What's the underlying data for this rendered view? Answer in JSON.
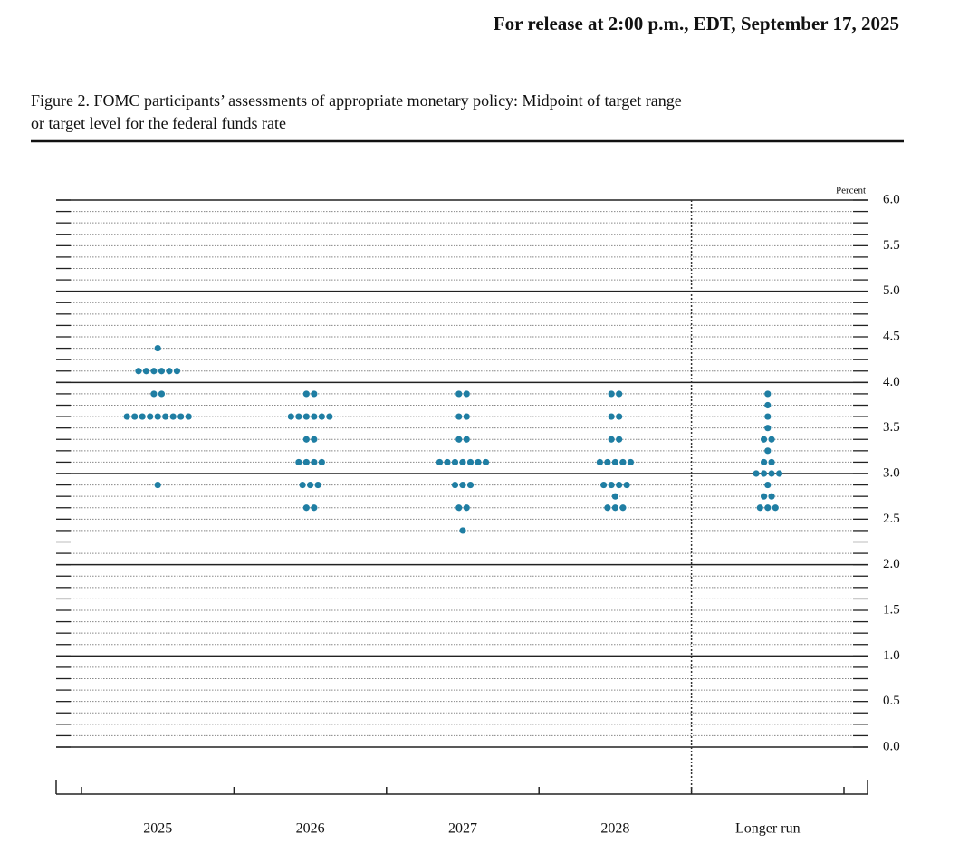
{
  "chart_data": {
    "type": "dot",
    "header": "For release at 2:00 p.m., EDT, September 17, 2025",
    "title": "Figure 2. FOMC participants’ assessments of appropriate monetary policy: Midpoint of target range",
    "title_line2": "or target level for the federal funds rate",
    "y_axis_label": "Percent",
    "categories": [
      "2025",
      "2026",
      "2027",
      "2028",
      "Longer run"
    ],
    "color": "#1f7ea3",
    "values": [
      [
        4.375,
        4.125,
        4.125,
        4.125,
        4.125,
        4.125,
        4.125,
        3.875,
        3.875,
        3.625,
        3.625,
        3.625,
        3.625,
        3.625,
        3.625,
        3.625,
        3.625,
        3.625,
        2.875
      ],
      [
        3.875,
        3.875,
        3.625,
        3.625,
        3.625,
        3.625,
        3.625,
        3.625,
        3.375,
        3.375,
        3.125,
        3.125,
        3.125,
        3.125,
        2.875,
        2.875,
        2.875,
        2.625,
        2.625
      ],
      [
        3.875,
        3.875,
        3.625,
        3.625,
        3.375,
        3.375,
        3.125,
        3.125,
        3.125,
        3.125,
        3.125,
        3.125,
        3.125,
        2.875,
        2.875,
        2.875,
        2.625,
        2.625,
        2.375
      ],
      [
        3.875,
        3.875,
        3.625,
        3.625,
        3.375,
        3.375,
        3.125,
        3.125,
        3.125,
        3.125,
        3.125,
        2.875,
        2.875,
        2.875,
        2.875,
        2.75,
        2.625,
        2.625,
        2.625
      ],
      [
        3.875,
        3.75,
        3.625,
        3.5,
        3.375,
        3.375,
        3.25,
        3.125,
        3.125,
        3,
        3,
        3,
        3,
        2.875,
        2.75,
        2.75,
        2.625,
        2.625,
        2.625
      ]
    ],
    "ylim": [
      0,
      6
    ],
    "yticks": [
      {
        "value": 0,
        "label": "0.0"
      },
      0.5,
      {
        "value": 1,
        "label": "1.0"
      },
      1.5,
      {
        "value": 2,
        "label": "2.0"
      },
      2.5,
      {
        "value": 3,
        "label": "3.0"
      },
      3.5,
      {
        "value": 4,
        "label": "4.0"
      },
      4.5,
      {
        "value": 5,
        "label": "5.0"
      },
      5.5,
      {
        "value": 6,
        "label": "6.0"
      }
    ],
    "grid": true
  }
}
